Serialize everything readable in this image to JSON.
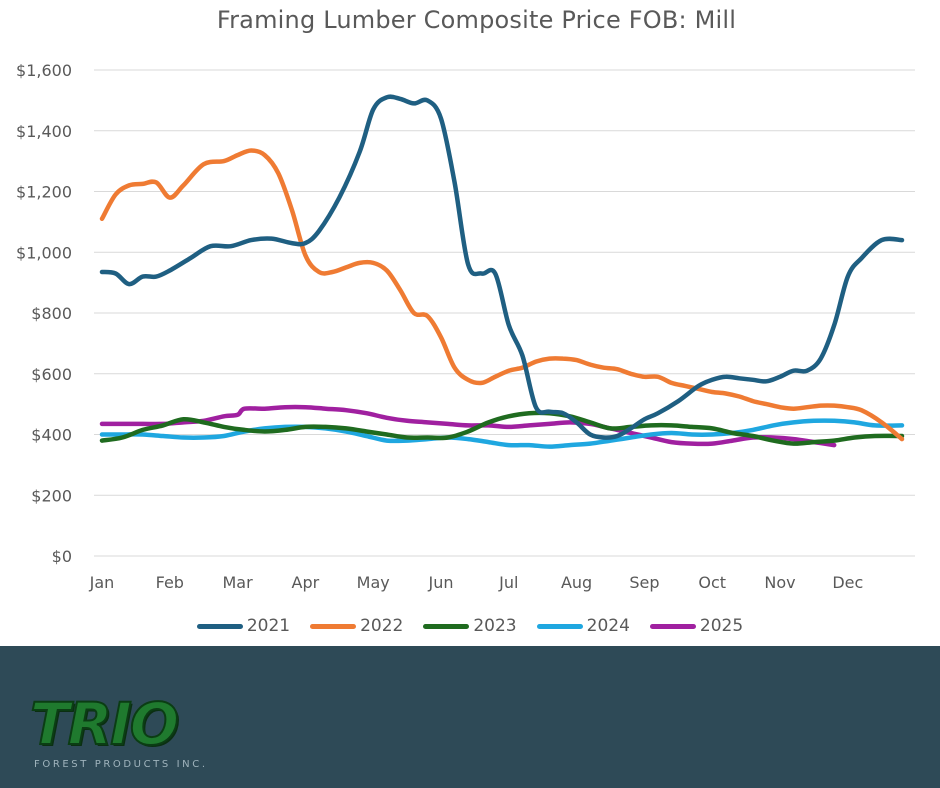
{
  "chart_data": {
    "type": "line",
    "title": "Framing Lumber Composite Price FOB: Mill",
    "xlabel": "",
    "ylabel": "",
    "x_labels": [
      "Jan",
      "Feb",
      "Mar",
      "Apr",
      "May",
      "Jun",
      "Jul",
      "Aug",
      "Sep",
      "Oct",
      "Nov",
      "Dec"
    ],
    "y_ticks": [
      "$0",
      "$200",
      "$400",
      "$600",
      "$800",
      "$1,000",
      "$1,200",
      "$1,400",
      "$1,600"
    ],
    "ylim": [
      0,
      1600
    ],
    "grid": true,
    "legend_position": "bottom",
    "series": [
      {
        "name": "2021",
        "color": "#1f5f82",
        "x": [
          0,
          0.2,
          0.4,
          0.6,
          0.8,
          1.0,
          1.3,
          1.6,
          1.9,
          2.2,
          2.5,
          2.8,
          3.0,
          3.2,
          3.5,
          3.8,
          4.0,
          4.2,
          4.4,
          4.6,
          4.8,
          5.0,
          5.2,
          5.4,
          5.6,
          5.8,
          6.0,
          6.2,
          6.4,
          6.6,
          6.8,
          7.0,
          7.2,
          7.4,
          7.6,
          7.8,
          8.0,
          8.2,
          8.5,
          8.8,
          9.0,
          9.2,
          9.4,
          9.6,
          9.8,
          10.0,
          10.2,
          10.4,
          10.6,
          10.8,
          11.0,
          11.2,
          11.5,
          11.8
        ],
        "values": [
          935,
          930,
          895,
          920,
          920,
          940,
          980,
          1020,
          1020,
          1040,
          1045,
          1030,
          1030,
          1070,
          1180,
          1330,
          1470,
          1510,
          1505,
          1490,
          1500,
          1440,
          1230,
          960,
          930,
          930,
          760,
          660,
          490,
          475,
          470,
          440,
          400,
          390,
          395,
          420,
          450,
          470,
          510,
          560,
          580,
          590,
          585,
          580,
          575,
          590,
          610,
          610,
          650,
          760,
          920,
          980,
          1040,
          1040
        ]
      },
      {
        "name": "2022",
        "color": "#ef7b33",
        "x": [
          0,
          0.2,
          0.4,
          0.6,
          0.8,
          1.0,
          1.2,
          1.5,
          1.8,
          2.0,
          2.2,
          2.4,
          2.6,
          2.8,
          3.0,
          3.2,
          3.4,
          3.6,
          3.8,
          4.0,
          4.2,
          4.4,
          4.6,
          4.8,
          5.0,
          5.2,
          5.4,
          5.6,
          5.8,
          6.0,
          6.2,
          6.4,
          6.6,
          6.8,
          7.0,
          7.2,
          7.4,
          7.6,
          7.8,
          8.0,
          8.2,
          8.4,
          8.6,
          8.8,
          9.0,
          9.2,
          9.4,
          9.6,
          9.8,
          10.0,
          10.2,
          10.4,
          10.6,
          10.8,
          11.0,
          11.2,
          11.5,
          11.8
        ],
        "values": [
          1110,
          1190,
          1220,
          1225,
          1230,
          1180,
          1220,
          1290,
          1300,
          1320,
          1335,
          1320,
          1260,
          1140,
          990,
          935,
          935,
          950,
          965,
          965,
          940,
          875,
          800,
          790,
          720,
          620,
          580,
          570,
          590,
          610,
          620,
          640,
          650,
          650,
          645,
          630,
          620,
          615,
          600,
          590,
          590,
          570,
          560,
          550,
          540,
          535,
          525,
          510,
          500,
          490,
          485,
          490,
          495,
          495,
          490,
          480,
          440,
          385
        ]
      },
      {
        "name": "2023",
        "color": "#1f6b1f",
        "x": [
          0,
          0.3,
          0.6,
          0.9,
          1.2,
          1.5,
          1.8,
          2.1,
          2.4,
          2.7,
          3.0,
          3.3,
          3.6,
          3.9,
          4.2,
          4.5,
          4.8,
          5.1,
          5.4,
          5.7,
          6.0,
          6.3,
          6.6,
          6.9,
          7.2,
          7.5,
          7.8,
          8.1,
          8.4,
          8.7,
          9.0,
          9.3,
          9.6,
          9.9,
          10.2,
          10.5,
          10.8,
          11.1,
          11.4,
          11.8
        ],
        "values": [
          380,
          390,
          415,
          430,
          450,
          440,
          425,
          415,
          410,
          415,
          425,
          425,
          420,
          410,
          400,
          390,
          390,
          390,
          410,
          440,
          460,
          470,
          470,
          460,
          440,
          420,
          425,
          430,
          430,
          425,
          420,
          405,
          395,
          380,
          370,
          375,
          380,
          390,
          395,
          395
        ]
      },
      {
        "name": "2024",
        "color": "#1fa7e0",
        "x": [
          0,
          0.3,
          0.6,
          0.9,
          1.2,
          1.5,
          1.8,
          2.1,
          2.4,
          2.7,
          3.0,
          3.3,
          3.6,
          3.9,
          4.2,
          4.5,
          4.8,
          5.1,
          5.4,
          5.7,
          6.0,
          6.3,
          6.6,
          6.9,
          7.2,
          7.5,
          7.8,
          8.1,
          8.4,
          8.7,
          9.0,
          9.3,
          9.6,
          9.9,
          10.2,
          10.5,
          10.8,
          11.1,
          11.4,
          11.8
        ],
        "values": [
          400,
          400,
          400,
          395,
          390,
          390,
          395,
          410,
          420,
          425,
          425,
          420,
          410,
          395,
          380,
          380,
          385,
          390,
          385,
          375,
          365,
          365,
          360,
          365,
          370,
          380,
          390,
          400,
          405,
          400,
          400,
          405,
          415,
          430,
          440,
          445,
          445,
          440,
          430,
          430
        ]
      },
      {
        "name": "2025",
        "color": "#a020a0",
        "x": [
          0,
          0.3,
          0.6,
          0.9,
          1.2,
          1.5,
          1.8,
          2.0,
          2.1,
          2.4,
          2.7,
          3.0,
          3.3,
          3.6,
          3.9,
          4.2,
          4.5,
          4.8,
          5.1,
          5.4,
          5.7,
          6.0,
          6.3,
          6.6,
          6.9,
          7.2,
          7.5,
          7.8,
          8.1,
          8.4,
          8.7,
          9.0,
          9.3,
          9.6,
          9.9,
          10.2,
          10.5,
          10.8
        ],
        "values": [
          435,
          435,
          435,
          435,
          440,
          445,
          460,
          465,
          485,
          485,
          490,
          490,
          485,
          480,
          470,
          455,
          445,
          440,
          435,
          430,
          430,
          425,
          430,
          435,
          440,
          435,
          420,
          405,
          390,
          375,
          370,
          370,
          380,
          390,
          390,
          385,
          375,
          365
        ]
      }
    ]
  },
  "logo": {
    "word": "TRIO",
    "subtitle": "FOREST PRODUCTS INC."
  }
}
